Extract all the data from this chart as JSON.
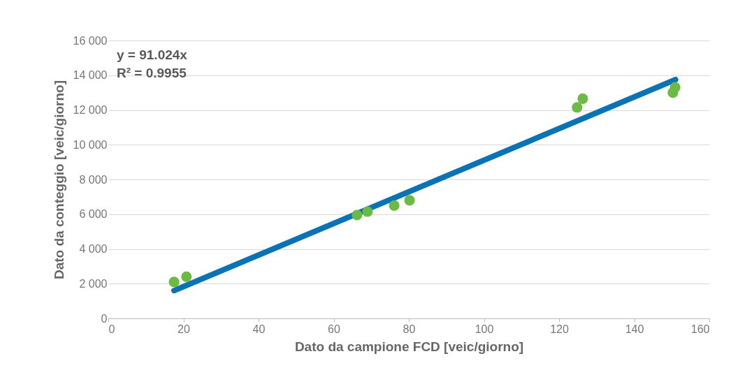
{
  "chart_data": {
    "type": "scatter",
    "xlabel": "Dato da campione FCD  [veic/giorno]",
    "ylabel": "Dato da conteggio [veic/giorno]",
    "annotations": [
      "y = 91.024x",
      "R² = 0.9955"
    ],
    "series": [
      {
        "type": "line",
        "color": "#0a73b5",
        "x": [
          17.5,
          151
        ],
        "values": [
          1600,
          13750
        ]
      },
      {
        "color": "#6cb944",
        "marker": "circle",
        "x": [
          17.5,
          20.8,
          66.2,
          69.0,
          76.1,
          80.2,
          124.8,
          126.3,
          150.3,
          150.9
        ],
        "values": [
          2100,
          2400,
          5950,
          6150,
          6500,
          6800,
          12150,
          12650,
          13000,
          13300
        ]
      }
    ],
    "xlim": [
      0,
      160
    ],
    "xticks": [
      0,
      20,
      40,
      60,
      80,
      100,
      120,
      140,
      160
    ],
    "ylim": [
      0,
      16000
    ],
    "yticks": [
      0,
      {
        "value": 2000,
        "label": "2 000"
      },
      {
        "value": 4000,
        "label": "4 000"
      },
      {
        "value": 6000,
        "label": "6 000"
      },
      {
        "value": 8000,
        "label": "8 000"
      },
      {
        "value": 10000,
        "label": "10 000"
      },
      {
        "value": 12000,
        "label": "12 000"
      },
      {
        "value": 14000,
        "label": "14 000"
      },
      {
        "value": 16000,
        "label": "16 000"
      }
    ],
    "grid": "y"
  }
}
